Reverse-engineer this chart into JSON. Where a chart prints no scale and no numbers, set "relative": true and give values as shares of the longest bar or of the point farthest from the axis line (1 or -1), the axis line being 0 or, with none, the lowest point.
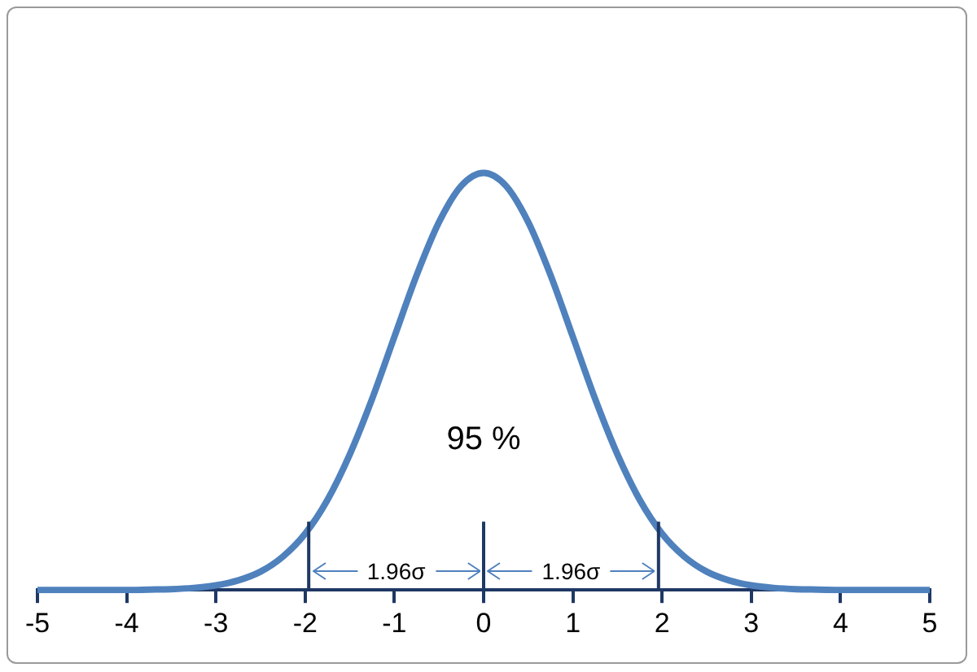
{
  "chart_data": {
    "type": "line",
    "relative": true,
    "x": [
      -5,
      -4.5,
      -4,
      -3.75,
      -3.5,
      -3.25,
      -3,
      -2.75,
      -2.5,
      -2.25,
      -2,
      -1.75,
      -1.5,
      -1.25,
      -1,
      -0.75,
      -0.5,
      -0.25,
      0,
      0.25,
      0.5,
      0.75,
      1,
      1.25,
      1.5,
      1.75,
      2,
      2.25,
      2.5,
      2.75,
      3,
      3.25,
      3.5,
      3.75,
      4,
      4.5,
      5
    ],
    "series": [
      {
        "color": "#4f81bd",
        "values": [
          0,
          0,
          0,
          0.001,
          0.002,
          0.005,
          0.011,
          0.023,
          0.044,
          0.08,
          0.135,
          0.216,
          0.325,
          0.458,
          0.607,
          0.755,
          0.882,
          0.969,
          1,
          0.969,
          0.882,
          0.755,
          0.607,
          0.458,
          0.325,
          0.216,
          0.135,
          0.08,
          0.044,
          0.023,
          0.011,
          0.005,
          0.002,
          0.001,
          0,
          0,
          0
        ]
      }
    ],
    "xlim": [
      -5,
      5
    ],
    "xticks": [
      -5,
      -4,
      -3,
      -2,
      -1,
      0,
      1,
      2,
      3,
      4,
      5
    ],
    "ref_lines": [
      {
        "axis": "x",
        "value": -1.96,
        "color": "#1f3864"
      },
      {
        "axis": "x",
        "value": 0,
        "color": "#1f3864"
      },
      {
        "axis": "x",
        "value": 1.96,
        "color": "#1f3864"
      }
    ],
    "annotations": [
      "95 %",
      {
        "text": "1.96σ",
        "x": -0.98,
        "y": 0.04
      },
      {
        "text": "1.96σ",
        "x": 0.98,
        "y": 0.04
      }
    ],
    "grid": false,
    "legend": false,
    "marker": "none",
    "line_style": "solid"
  }
}
